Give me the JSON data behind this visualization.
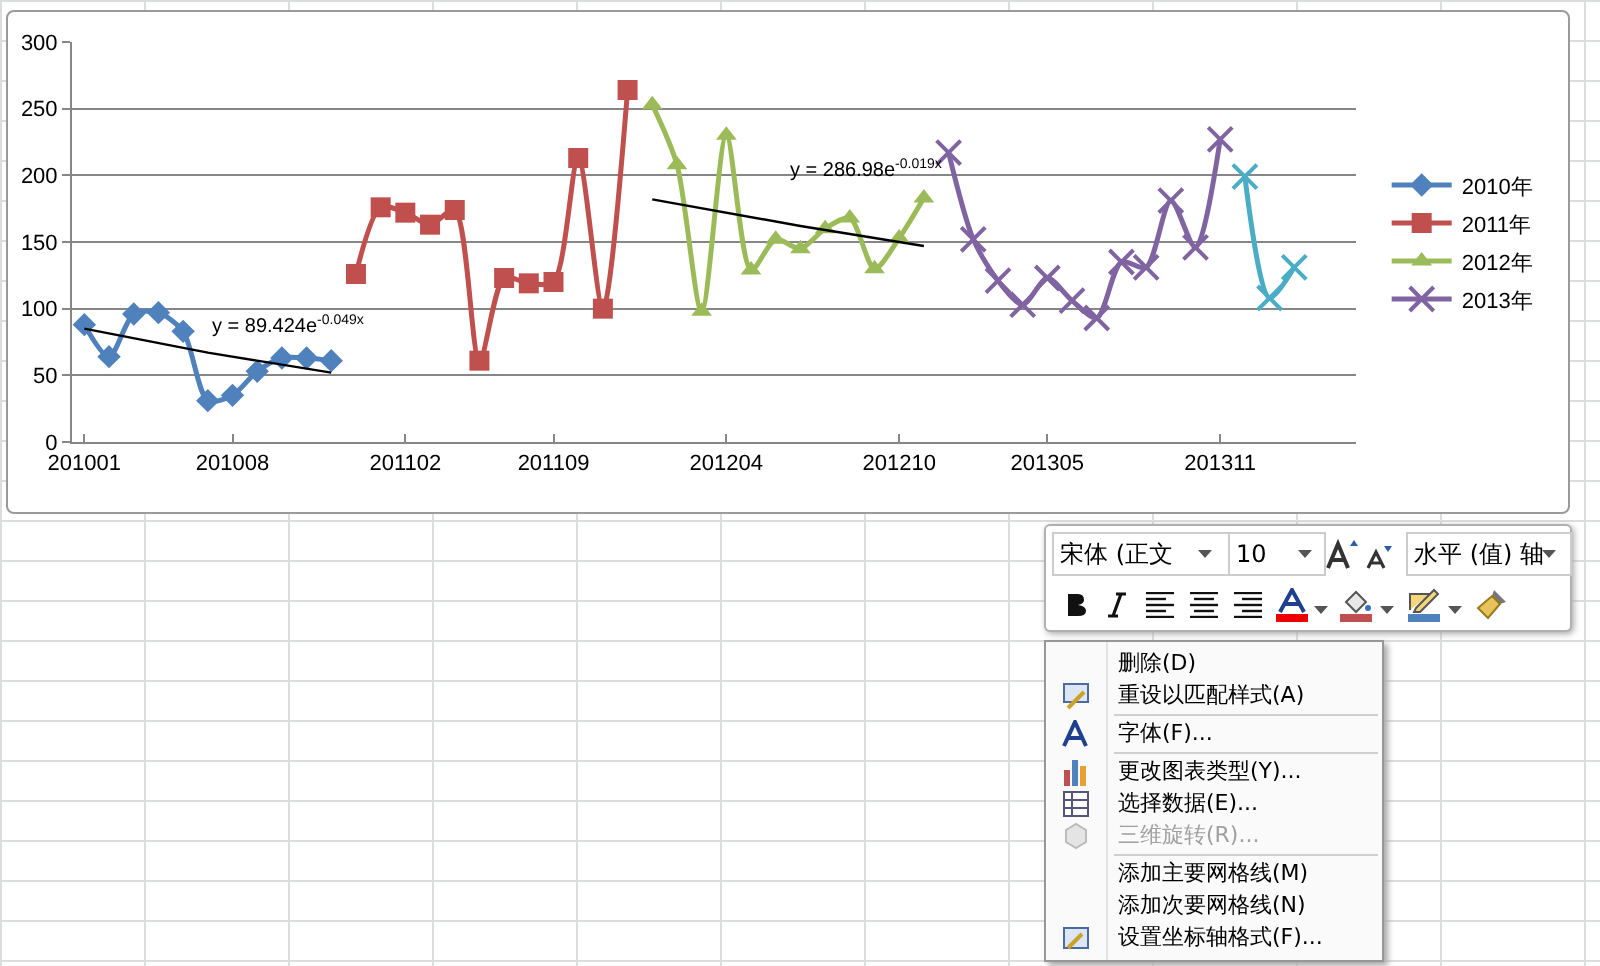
{
  "chart_data": [
    {
      "type": "line",
      "categories": [
        "201001",
        null,
        null,
        null,
        null,
        null,
        "201008",
        null,
        null,
        null,
        null,
        null,
        null,
        "201102",
        null,
        null,
        null,
        null,
        null,
        "201109",
        null,
        null,
        null,
        null,
        null,
        null,
        "201204",
        null,
        null,
        null,
        null,
        null,
        null,
        "201210",
        null,
        null,
        null,
        null,
        null,
        "201305",
        null,
        null,
        null,
        null,
        null,
        null,
        "201311",
        null,
        null,
        null
      ],
      "ylim": [
        0,
        300
      ],
      "yticks": [
        0,
        50,
        100,
        150,
        200,
        250,
        300
      ],
      "grid": "y",
      "legend": "right",
      "series": [
        {
          "name": "2010年",
          "color": "#4f81bd",
          "marker": "diamond",
          "values": [
            88,
            64,
            96,
            97,
            83,
            31,
            35,
            53,
            63,
            63,
            61,
            null,
            null,
            null,
            null,
            null,
            null,
            null,
            null,
            null,
            null,
            null,
            null,
            null,
            null,
            null,
            null,
            null,
            null,
            null,
            null,
            null,
            null,
            null,
            null,
            null,
            null,
            null,
            null,
            null,
            null,
            null,
            null,
            null,
            null,
            null,
            null,
            null,
            null,
            null
          ]
        },
        {
          "name": "2011年",
          "color": "#c0504d",
          "marker": "square",
          "values": [
            null,
            null,
            null,
            null,
            null,
            null,
            null,
            null,
            null,
            null,
            null,
            126,
            176,
            172,
            163,
            174,
            61,
            123,
            119,
            120,
            213,
            100,
            264,
            null,
            null,
            null,
            null,
            null,
            null,
            null,
            null,
            null,
            null,
            null,
            null,
            null,
            null,
            null,
            null,
            null,
            null,
            null,
            null,
            null,
            null,
            null,
            null,
            null,
            null,
            null
          ]
        },
        {
          "name": "2012年",
          "color": "#9bbb59",
          "marker": "triangle",
          "values": [
            null,
            null,
            null,
            null,
            null,
            null,
            null,
            null,
            null,
            null,
            null,
            null,
            null,
            null,
            null,
            null,
            null,
            null,
            null,
            null,
            null,
            null,
            null,
            253,
            208,
            98,
            230,
            129,
            152,
            145,
            160,
            168,
            130,
            153,
            183,
            null,
            null,
            null,
            null,
            null,
            null,
            null,
            null,
            null,
            null,
            null,
            null,
            null,
            null,
            null
          ]
        },
        {
          "name": "2013年",
          "color": "#8064a2",
          "marker": "cross",
          "values": [
            null,
            null,
            null,
            null,
            null,
            null,
            null,
            null,
            null,
            null,
            null,
            null,
            null,
            null,
            null,
            null,
            null,
            null,
            null,
            null,
            null,
            null,
            null,
            null,
            null,
            null,
            null,
            null,
            null,
            null,
            null,
            null,
            null,
            null,
            null,
            217,
            152,
            121,
            103,
            123,
            106,
            93,
            135,
            131,
            181,
            146,
            227,
            null,
            null,
            null
          ]
        },
        {
          "color": "#4bacc6",
          "marker": "cross",
          "values": [
            null,
            null,
            null,
            null,
            null,
            null,
            null,
            null,
            null,
            null,
            null,
            null,
            null,
            null,
            null,
            null,
            null,
            null,
            null,
            null,
            null,
            null,
            null,
            null,
            null,
            null,
            null,
            null,
            null,
            null,
            null,
            null,
            null,
            null,
            null,
            null,
            null,
            null,
            null,
            null,
            null,
            null,
            null,
            null,
            null,
            null,
            null,
            199,
            108,
            131
          ]
        },
        {
          "color": "#000000",
          "marker": "none",
          "line_style": "solid",
          "values": [
            85,
            null,
            null,
            null,
            null,
            67,
            null,
            null,
            null,
            null,
            52,
            null,
            null,
            null,
            null,
            null,
            null,
            null,
            null,
            null,
            null,
            null,
            null,
            null,
            null,
            null,
            null,
            null,
            null,
            null,
            null,
            null,
            null,
            null,
            null,
            null,
            null,
            null,
            null,
            null,
            null,
            null,
            null,
            null,
            null,
            null,
            null,
            null,
            null,
            null
          ]
        },
        {
          "color": "#000000",
          "marker": "none",
          "line_style": "solid",
          "values": [
            null,
            null,
            null,
            null,
            null,
            null,
            null,
            null,
            null,
            null,
            null,
            null,
            null,
            null,
            null,
            null,
            null,
            null,
            null,
            null,
            null,
            null,
            null,
            182,
            null,
            null,
            null,
            null,
            null,
            162,
            null,
            null,
            null,
            null,
            147,
            null,
            null,
            null,
            null,
            null,
            null,
            null,
            null,
            null,
            null,
            null,
            null,
            null,
            null,
            null
          ]
        }
      ],
      "annotations": [
        "y = 89.424e$^{-0.049x}$",
        "y = 286.98e$^{-0.019x}$"
      ]
    },
    {
      "type": "other",
      "annotations": [
        "宋体 (正文",
        "10",
        "水平 (值) 轴",
        "删除(D)",
        "重设以匹配样式(A)",
        "字体(F)...",
        "更改图表类型(Y)...",
        "选择数据(E)...",
        "三维旋转(R)...",
        "添加主要网格线(M)",
        "添加次要网格线(N)",
        "设置坐标轴格式(F)..."
      ]
    }
  ]
}
